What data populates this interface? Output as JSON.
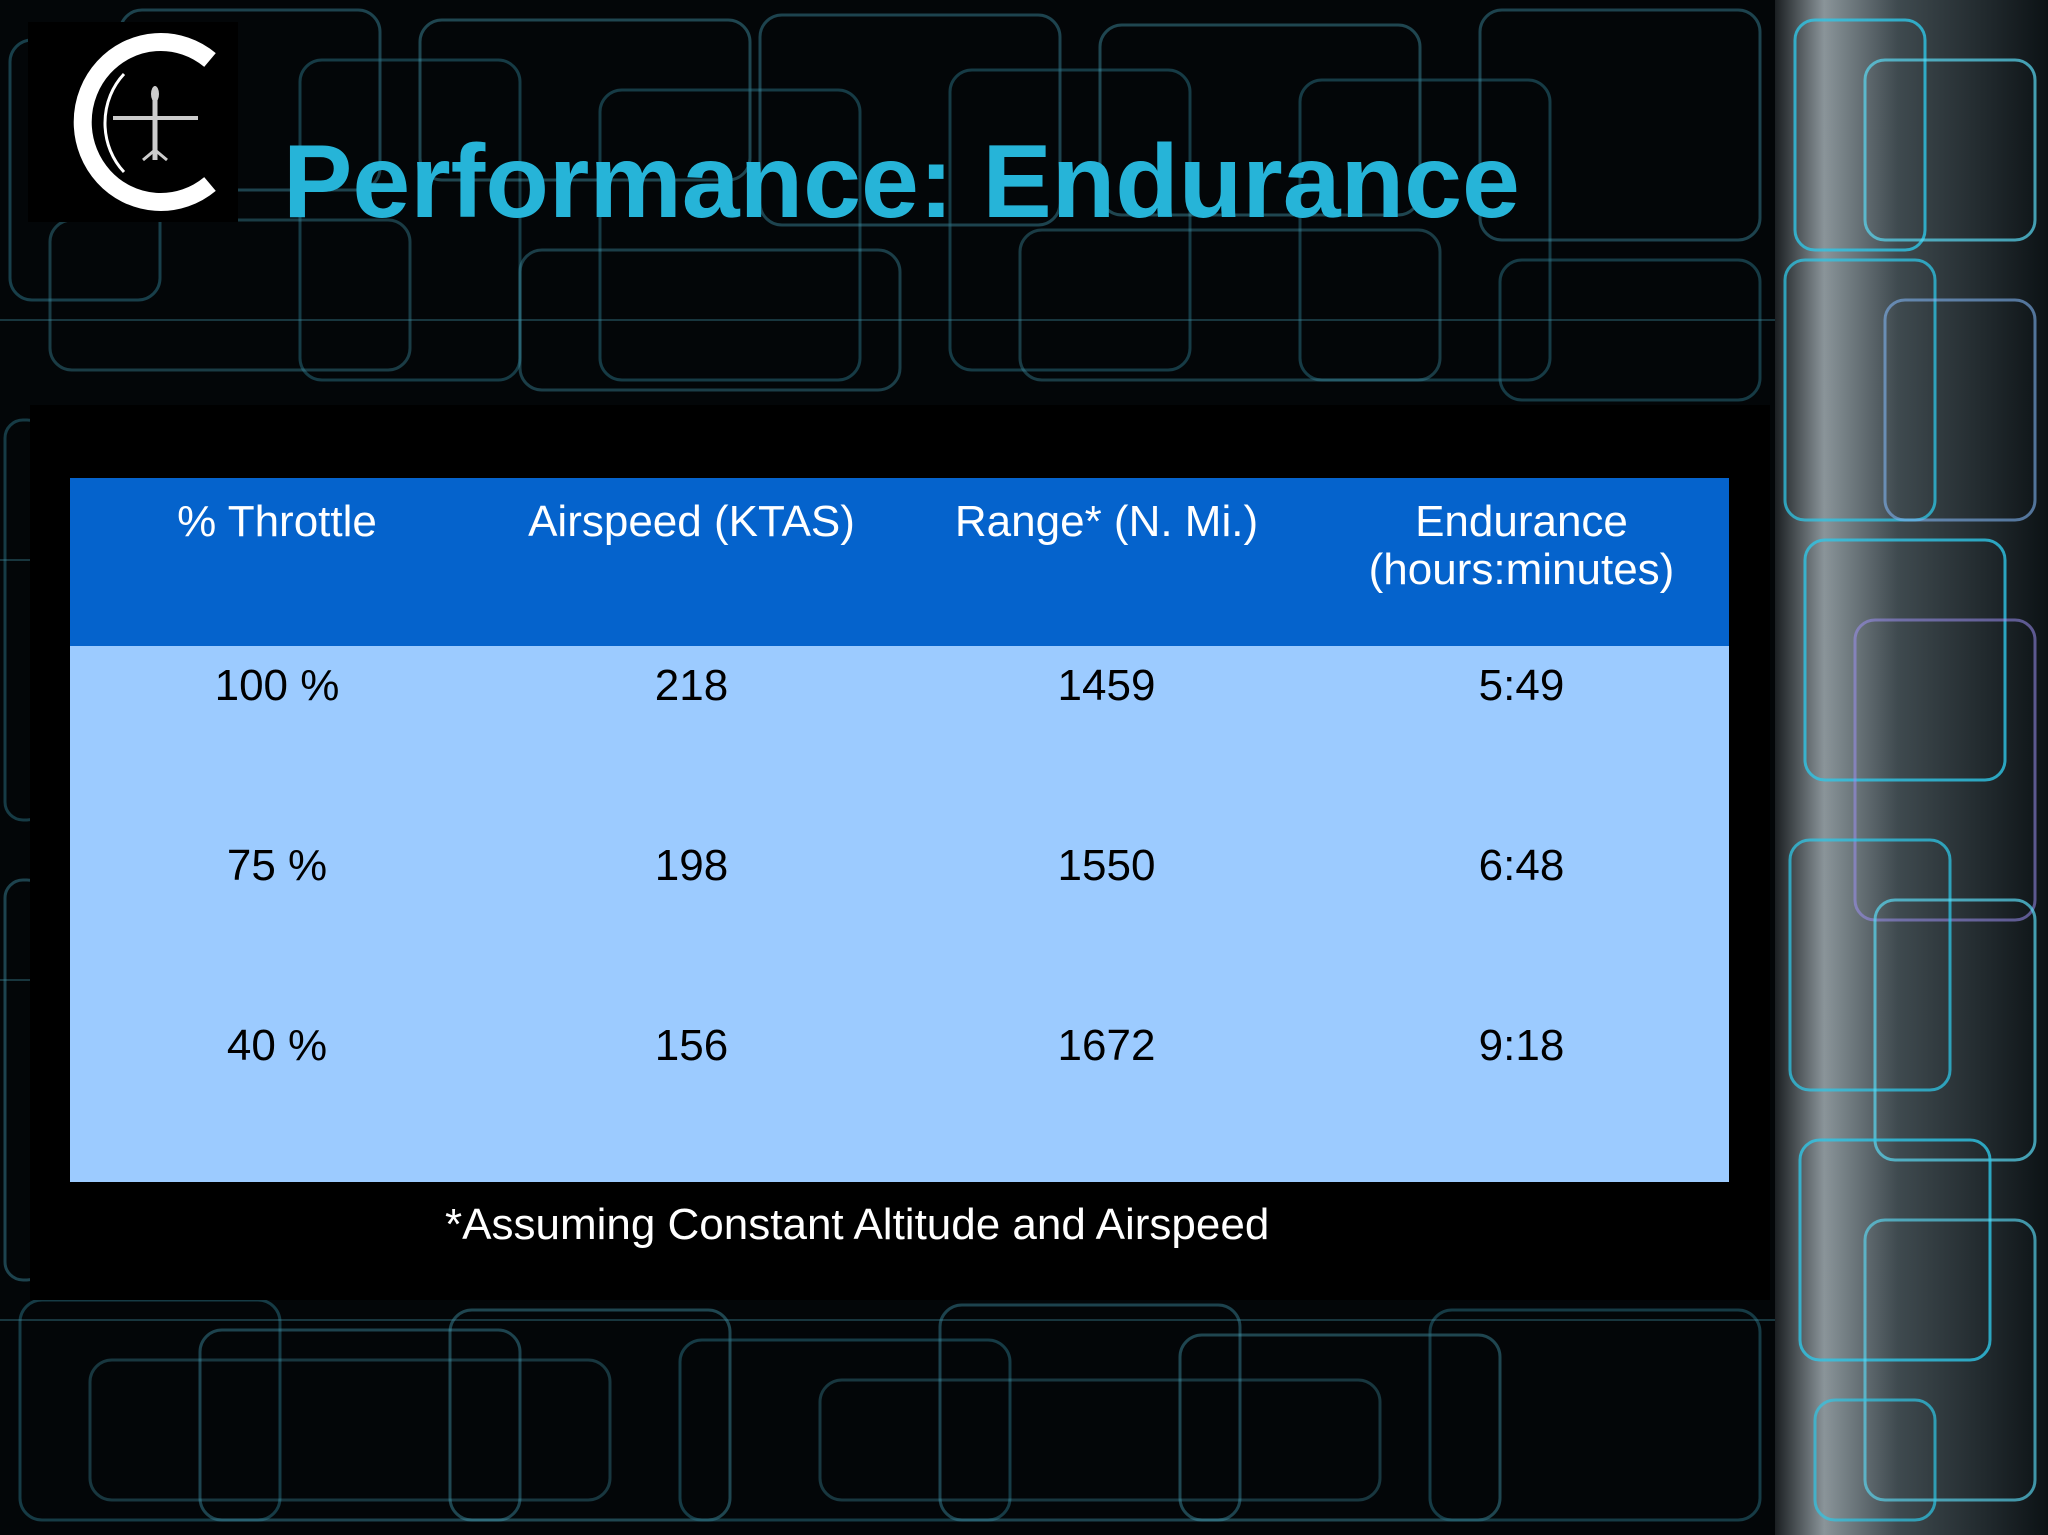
{
  "slide": {
    "title": "Performance: Endurance",
    "logo": {
      "icon": "aircraft-c-logo-icon",
      "letter": "C"
    },
    "accent_color": "#26b4d8",
    "table": {
      "header_color": "#0563cc",
      "row_color": "#9ccbff",
      "headers": [
        [
          "% Throttle"
        ],
        [
          "Airspeed (KTAS)"
        ],
        [
          "Range* (N. Mi.)"
        ],
        [
          "Endurance",
          "(hours:minutes)"
        ]
      ],
      "rows": [
        [
          "100 %",
          "218",
          "1459",
          "5:49"
        ],
        [
          "75 %",
          "198",
          "1550",
          "6:48"
        ],
        [
          "40 %",
          "156",
          "1672",
          "9:18"
        ]
      ]
    },
    "footnote": "*Assuming Constant Altitude and Airspeed"
  }
}
